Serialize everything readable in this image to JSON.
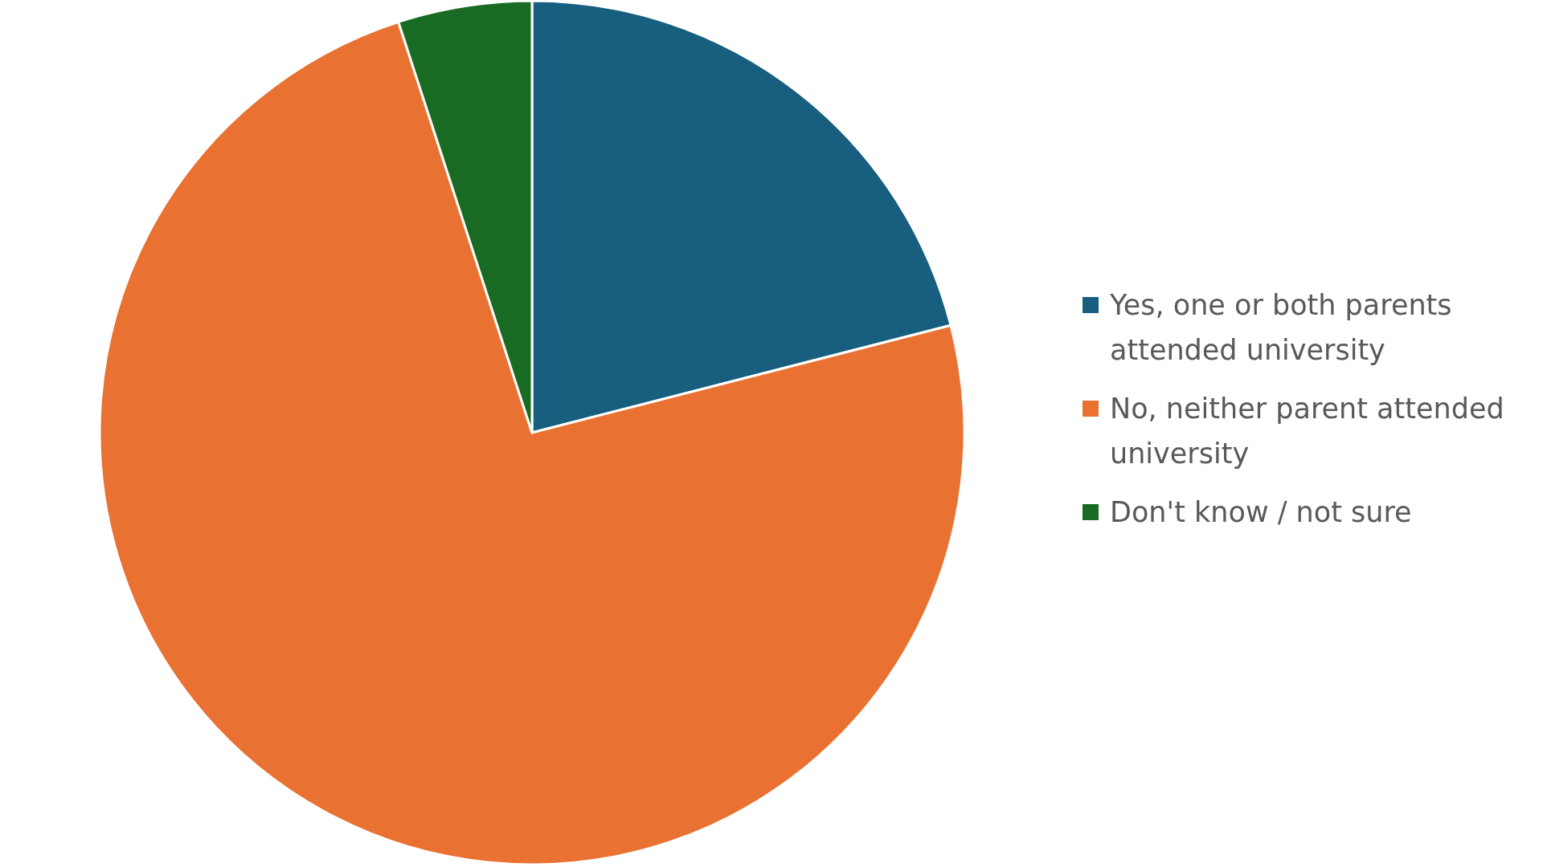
{
  "chart_data": {
    "type": "pie",
    "categories": [
      "Yes, one or both parents attended university",
      "No, neither parent attended university",
      "Don't know / not sure"
    ],
    "values": [
      21,
      74,
      5
    ],
    "colors": [
      "#175e7f",
      "#e97132",
      "#196b24"
    ],
    "legend": "right"
  }
}
